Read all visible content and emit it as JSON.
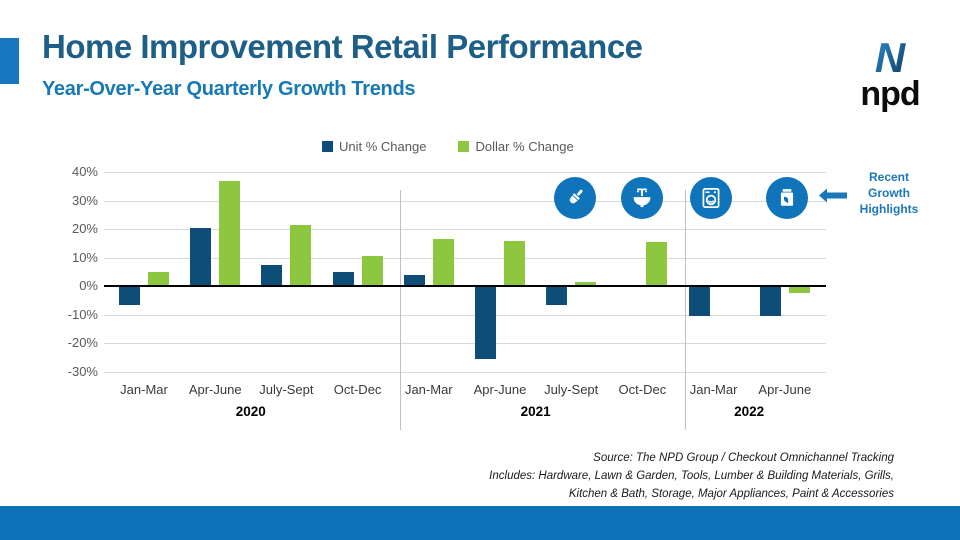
{
  "slide": {
    "title": "Home Improvement Retail Performance",
    "subtitle": "Year-Over-Year Quarterly Growth Trends",
    "logo": {
      "n": "N",
      "text": "npd"
    }
  },
  "callout": {
    "lines": [
      "Recent",
      "Growth",
      "Highlights"
    ],
    "color": "#1b78b8"
  },
  "icons": [
    {
      "name": "paint-brush"
    },
    {
      "name": "bathroom-sink"
    },
    {
      "name": "washing-machine"
    },
    {
      "name": "garden-soil-bag"
    }
  ],
  "source": {
    "lines": [
      "Source: The NPD Group / Checkout Omnichannel Tracking",
      "Includes: Hardware, Lawn & Garden, Tools, Lumber & Building Materials, Grills,",
      "Kitchen & Bath, Storage, Major Appliances, Paint & Accessories"
    ]
  },
  "colors": {
    "accent_bar": "#1878bf",
    "title": "#1d5f87",
    "subtitle": "#1779b5",
    "unit_bar": "#0e4d77",
    "dollar_bar": "#8dc63f",
    "icon_badge": "#0f74ba",
    "footer_bar": "#0e73b8",
    "gridline": "#d9d9d9"
  },
  "chart_data": {
    "type": "bar",
    "title": "Year-Over-Year Quarterly Growth Trends",
    "xlabel": "",
    "ylabel": "",
    "ylim": [
      -30,
      40
    ],
    "yticks": [
      40,
      30,
      20,
      10,
      0,
      -10,
      -20,
      -30
    ],
    "ytick_suffix": "%",
    "grid": true,
    "legend_position": "top-center",
    "groups": [
      {
        "year": "2020",
        "quarters": [
          "Jan-Mar",
          "Apr-June",
          "July-Sept",
          "Oct-Dec"
        ]
      },
      {
        "year": "2021",
        "quarters": [
          "Jan-Mar",
          "Apr-June",
          "July-Sept",
          "Oct-Dec"
        ]
      },
      {
        "year": "2022",
        "quarters": [
          "Jan-Mar",
          "Apr-June"
        ]
      }
    ],
    "categories": [
      "Jan-Mar 2020",
      "Apr-June 2020",
      "July-Sept 2020",
      "Oct-Dec 2020",
      "Jan-Mar 2021",
      "Apr-June 2021",
      "July-Sept 2021",
      "Oct-Dec 2021",
      "Jan-Mar 2022",
      "Apr-June 2022"
    ],
    "series": [
      {
        "name": "Unit % Change",
        "color": "#0e4d77",
        "values": [
          -6.5,
          20.5,
          7.5,
          5,
          4,
          -25.5,
          -6.5,
          0.5,
          -10.5,
          -10.5
        ]
      },
      {
        "name": "Dollar % Change",
        "color": "#8dc63f",
        "values": [
          5,
          37,
          21.5,
          10.5,
          16.5,
          16,
          1.5,
          15.5,
          0.5,
          -2.5
        ]
      }
    ]
  }
}
